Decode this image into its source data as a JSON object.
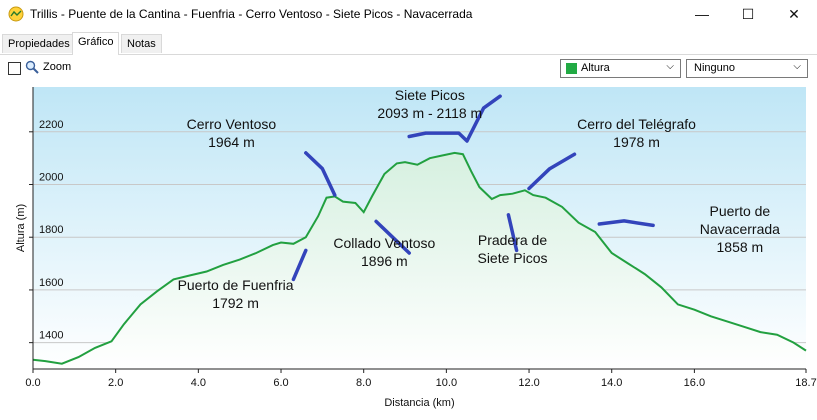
{
  "window": {
    "title": "Trillis - Puente de la Cantina - Fuenfria - Cerro Ventoso - Siete Picos - Navacerrada",
    "minimize_glyph": "—",
    "maximize_glyph": "☐",
    "close_glyph": "✕"
  },
  "tabs": [
    {
      "label": "Propiedades",
      "active": false
    },
    {
      "label": "Gráfico",
      "active": true
    },
    {
      "label": "Notas",
      "active": false
    }
  ],
  "toolbar": {
    "zoom_label": "Zoom",
    "zoom_checked": false,
    "series_select": {
      "value": "Altura",
      "color": "#22aa44"
    },
    "second_select": {
      "value": "Ninguno"
    }
  },
  "chart_data": {
    "type": "area",
    "xlabel": "Distancia  (km)",
    "ylabel": "Altura (m)",
    "xlim": [
      0,
      18.7
    ],
    "ylim": [
      1300,
      2370
    ],
    "x_ticks": [
      "0.0",
      "2.0",
      "4.0",
      "6.0",
      "8.0",
      "10.0",
      "12.0",
      "14.0",
      "16.0",
      "18.7"
    ],
    "x_tick_values": [
      0,
      2,
      4,
      6,
      8,
      10,
      12,
      14,
      16,
      18.7
    ],
    "y_ticks": [
      "1400",
      "1600",
      "1800",
      "2000",
      "2200"
    ],
    "y_tick_values": [
      1400,
      1600,
      1800,
      2000,
      2200
    ],
    "grid": true,
    "line_color": "#22a040",
    "fill_top": "#d6f0e0",
    "fill_bottom": "#ffffff",
    "bg_top": "#bfe6f6",
    "bg_bottom": "#ffffff",
    "series": [
      {
        "x": [
          0,
          0.3,
          0.7,
          1.1,
          1.5,
          1.9,
          2.2,
          2.6,
          3.0,
          3.4,
          3.8,
          4.2,
          4.6,
          5.0,
          5.4,
          5.8,
          6.0,
          6.3,
          6.6,
          6.9,
          7.1,
          7.3,
          7.5,
          7.8,
          8.0,
          8.2,
          8.5,
          8.8,
          9.0,
          9.3,
          9.6,
          9.9,
          10.2,
          10.4,
          10.6,
          10.8,
          11.1,
          11.3,
          11.6,
          11.9,
          12.1,
          12.4,
          12.8,
          13.2,
          13.6,
          14.0,
          14.4,
          14.8,
          15.2,
          15.6,
          16.0,
          16.4,
          16.8,
          17.2,
          17.6,
          18.0,
          18.4,
          18.7
        ],
        "y": [
          1335,
          1330,
          1320,
          1345,
          1380,
          1405,
          1470,
          1545,
          1595,
          1640,
          1655,
          1670,
          1695,
          1715,
          1740,
          1770,
          1780,
          1775,
          1800,
          1880,
          1950,
          1955,
          1935,
          1930,
          1895,
          1955,
          2040,
          2080,
          2085,
          2075,
          2100,
          2110,
          2120,
          2115,
          2050,
          1990,
          1945,
          1960,
          1965,
          1978,
          1960,
          1950,
          1915,
          1855,
          1820,
          1740,
          1700,
          1660,
          1610,
          1545,
          1525,
          1500,
          1480,
          1460,
          1440,
          1430,
          1400,
          1370
        ]
      }
    ],
    "annotations": [
      {
        "lines": [
          "Siete Picos",
          "2093 m - 2118 m"
        ],
        "x": 9.6,
        "y": 2320
      },
      {
        "lines": [
          "Cerro Ventoso",
          "1964 m"
        ],
        "x": 4.8,
        "y": 2210
      },
      {
        "lines": [
          "Cerro del Telégrafo",
          "1978 m"
        ],
        "x": 14.6,
        "y": 2210
      },
      {
        "lines": [
          "Puerto de",
          "Navacerrada",
          "1858 m"
        ],
        "x": 17.1,
        "y": 1880
      },
      {
        "lines": [
          "Collado Ventoso",
          "1896 m"
        ],
        "x": 8.5,
        "y": 1760
      },
      {
        "lines": [
          "Pradera de",
          "Siete Picos"
        ],
        "x": 11.6,
        "y": 1770
      },
      {
        "lines": [
          "Puerto de Fuenfria",
          "1792 m"
        ],
        "x": 4.9,
        "y": 1600
      }
    ],
    "marker_strokes": [
      [
        [
          9.1,
          2182
        ],
        [
          9.5,
          2195
        ],
        [
          10.3,
          2195
        ],
        [
          10.5,
          2165
        ],
        [
          10.9,
          2290
        ],
        [
          11.3,
          2335
        ]
      ],
      [
        [
          6.6,
          2120
        ],
        [
          7.0,
          2060
        ],
        [
          7.3,
          1960
        ]
      ],
      [
        [
          12.0,
          1985
        ],
        [
          12.5,
          2060
        ],
        [
          13.1,
          2115
        ]
      ],
      [
        [
          13.7,
          1850
        ],
        [
          14.3,
          1862
        ],
        [
          15.0,
          1845
        ]
      ],
      [
        [
          8.3,
          1860
        ],
        [
          8.7,
          1800
        ],
        [
          9.1,
          1740
        ]
      ],
      [
        [
          11.5,
          1885
        ],
        [
          11.7,
          1750
        ]
      ],
      [
        [
          6.6,
          1750
        ],
        [
          6.3,
          1640
        ]
      ]
    ],
    "marker_color": "#3344bb"
  }
}
